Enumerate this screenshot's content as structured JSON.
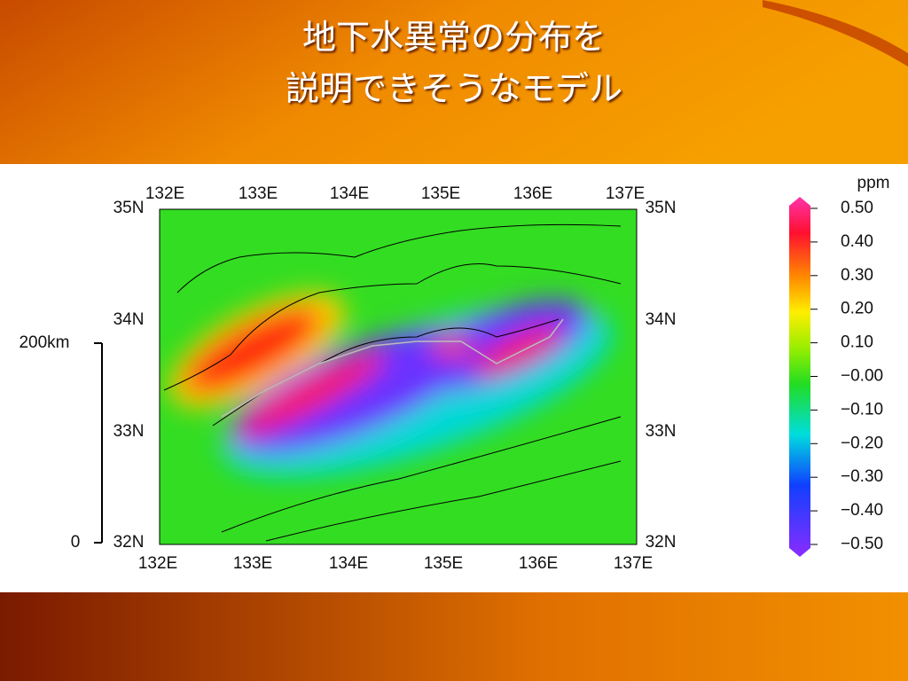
{
  "title": [
    "地下水異常の分布を",
    "説明できそうなモデル"
  ],
  "map": {
    "top_lon_labels": [
      "132E",
      "133E",
      "134E",
      "135E",
      "136E",
      "137E"
    ],
    "bottom_lon_labels": [
      "132E",
      "133E",
      "134E",
      "135E",
      "136E",
      "137E"
    ],
    "left_lat_labels": [
      "35N",
      "34N",
      "33N",
      "32N"
    ],
    "right_lat_labels": [
      "35N",
      "34N",
      "33N",
      "32N"
    ],
    "scale_bar": {
      "top": "200km",
      "bottom": "0"
    }
  },
  "colorbar": {
    "unit": "ppm",
    "labels": [
      "0.50",
      "0.40",
      "0.30",
      "0.20",
      "0.10",
      "−0.00",
      "−0.10",
      "−0.20",
      "−0.30",
      "−0.40",
      "−0.50"
    ]
  }
}
